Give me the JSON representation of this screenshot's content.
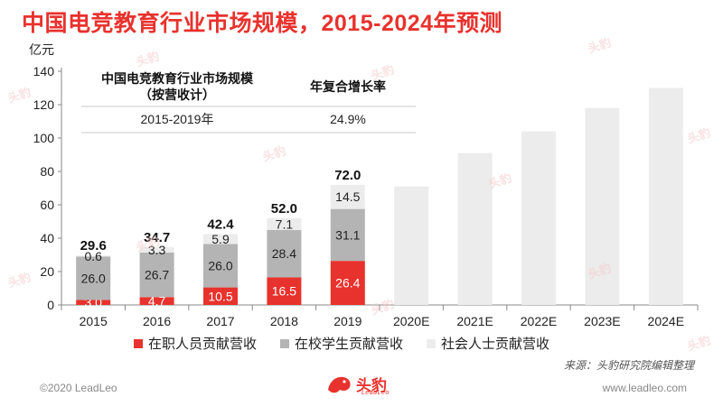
{
  "title": "中国电竞教育行业市场规模，2015-2024年预测",
  "watermark_text": "头豹",
  "chart_data": {
    "type": "bar",
    "stacked": true,
    "ylabel": "亿元",
    "ylim": [
      0,
      140
    ],
    "yticks": [
      0,
      20,
      40,
      60,
      80,
      100,
      120,
      140
    ],
    "grid": false,
    "categories": [
      "2015",
      "2016",
      "2017",
      "2018",
      "2019",
      "2020E",
      "2021E",
      "2022E",
      "2023E",
      "2024E"
    ],
    "series": [
      {
        "name": "在职人员贡献营收",
        "color": "#e8322d",
        "values": [
          3.0,
          4.7,
          10.5,
          16.5,
          26.4,
          null,
          null,
          null,
          null,
          null
        ]
      },
      {
        "name": "在校学生贡献营收",
        "color": "#b4b4b4",
        "values": [
          26.0,
          26.7,
          26.0,
          28.4,
          31.1,
          null,
          null,
          null,
          null,
          null
        ]
      },
      {
        "name": "社会人士贡献营收",
        "color": "#ececec",
        "values": [
          0.6,
          3.3,
          5.9,
          7.1,
          14.5,
          null,
          null,
          null,
          null,
          null
        ]
      }
    ],
    "totals": [
      29.6,
      34.7,
      42.4,
      52.0,
      72.0,
      null,
      null,
      null,
      null,
      null
    ],
    "forecast_values": [
      null,
      null,
      null,
      null,
      null,
      71,
      91,
      104,
      118,
      130
    ],
    "forecast_color": "#ececec",
    "legend_position": "bottom",
    "table": {
      "headers": [
        "中国电竞教育行业市场规模\n（按营收计）",
        "年复合增长率"
      ],
      "rows": [
        [
          "2015-2019年",
          "24.9%"
        ]
      ]
    }
  },
  "source": "来源：头豹研究院编辑整理",
  "footer_left": "©2020 LeadLeo",
  "footer_right": "www.leadleo.com",
  "logo_text": "头豹",
  "logo_sub": "LeadLeo"
}
